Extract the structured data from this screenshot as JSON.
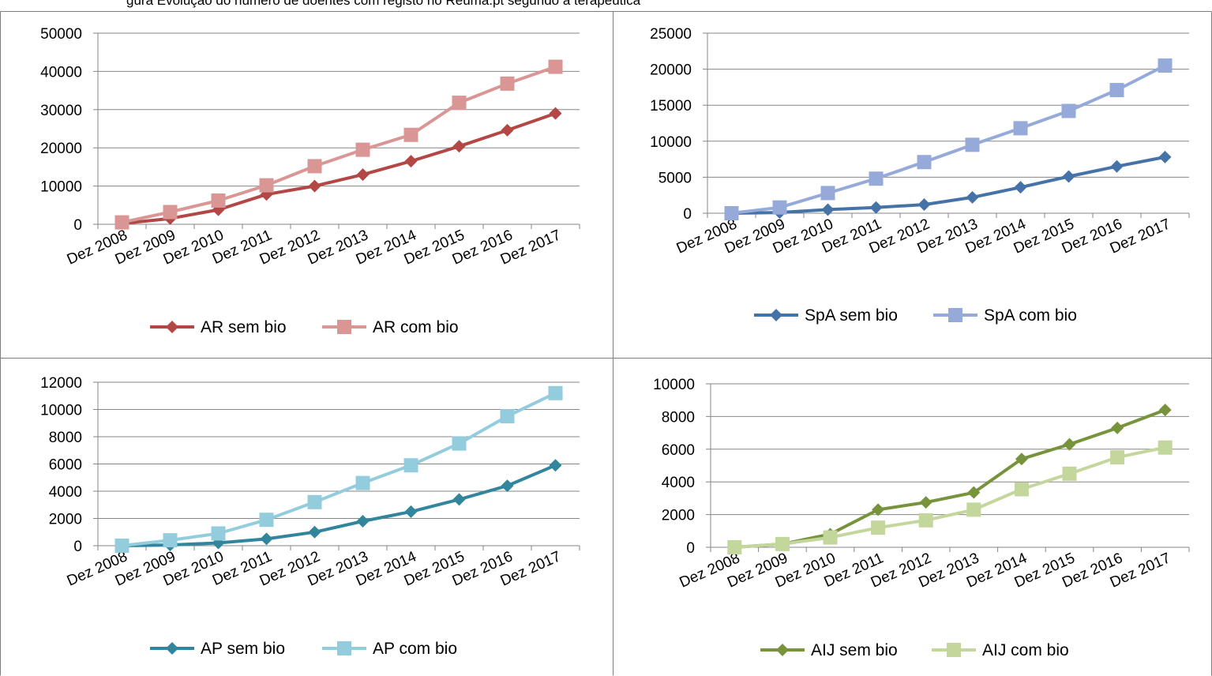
{
  "page": {
    "title_fragment": "gura   Evolução do número de doentes com registo no Reuma.pt segundo a terapêutica"
  },
  "chart_data": [
    {
      "type": "line",
      "categories": [
        "Dez 2008",
        "Dez 2009",
        "Dez 2010",
        "Dez 2011",
        "Dez 2012",
        "Dez 2013",
        "Dez 2014",
        "Dez 2015",
        "Dez 2016",
        "Dez 2017"
      ],
      "ylim": [
        0,
        50000
      ],
      "yticks": [
        0,
        10000,
        20000,
        30000,
        40000,
        50000
      ],
      "grid": true,
      "legend": "bottom",
      "series": [
        {
          "name": "AR sem bio",
          "marker": "diamond",
          "color": "#b24745",
          "values": [
            200,
            1500,
            3800,
            7800,
            10000,
            13000,
            16500,
            20400,
            24600,
            29000
          ]
        },
        {
          "name": "AR com bio",
          "marker": "square",
          "color": "#d99694",
          "values": [
            500,
            3200,
            6200,
            10200,
            15200,
            19500,
            23400,
            31800,
            36800,
            41200
          ]
        }
      ]
    },
    {
      "type": "line",
      "categories": [
        "Dez 2008",
        "Dez 2009",
        "Dez 2010",
        "Dez 2011",
        "Dez 2012",
        "Dez 2013",
        "Dez 2014",
        "Dez 2015",
        "Dez 2016",
        "Dez 2017"
      ],
      "ylim": [
        0,
        25000
      ],
      "yticks": [
        0,
        5000,
        10000,
        15000,
        20000,
        25000
      ],
      "grid": true,
      "legend": "bottom",
      "series": [
        {
          "name": "SpA sem bio",
          "marker": "diamond",
          "color": "#4572a7",
          "values": [
            0,
            100,
            500,
            800,
            1200,
            2200,
            3600,
            5100,
            6500,
            7800
          ]
        },
        {
          "name": "SpA com bio",
          "marker": "square",
          "color": "#95aad9",
          "values": [
            0,
            800,
            2800,
            4800,
            7100,
            9500,
            11800,
            14200,
            17100,
            20500
          ]
        }
      ]
    },
    {
      "type": "line",
      "categories": [
        "Dez 2008",
        "Dez 2009",
        "Dez 2010",
        "Dez 2011",
        "Dez 2012",
        "Dez 2013",
        "Dez 2014",
        "Dez 2015",
        "Dez 2016",
        "Dez 2017"
      ],
      "ylim": [
        0,
        12000
      ],
      "yticks": [
        0,
        2000,
        4000,
        6000,
        8000,
        10000,
        12000
      ],
      "grid": true,
      "legend": "bottom",
      "series": [
        {
          "name": "AP sem bio",
          "marker": "diamond",
          "color": "#31859c",
          "values": [
            0,
            50,
            200,
            500,
            1000,
            1800,
            2500,
            3400,
            4400,
            5900
          ]
        },
        {
          "name": "AP com bio",
          "marker": "square",
          "color": "#93cddd",
          "values": [
            0,
            400,
            900,
            1900,
            3200,
            4600,
            5900,
            7500,
            9500,
            11200
          ]
        }
      ]
    },
    {
      "type": "line",
      "categories": [
        "Dez 2008",
        "Dez 2009",
        "Dez 2010",
        "Dez 2011",
        "Dez 2012",
        "Dez 2013",
        "Dez 2014",
        "Dez 2015",
        "Dez 2016",
        "Dez 2017"
      ],
      "ylim": [
        0,
        10000
      ],
      "yticks": [
        0,
        2000,
        4000,
        6000,
        8000,
        10000
      ],
      "grid": true,
      "legend": "bottom",
      "series": [
        {
          "name": "AIJ sem bio",
          "marker": "diamond",
          "color": "#77933c",
          "values": [
            0,
            200,
            800,
            2300,
            2750,
            3350,
            5400,
            6300,
            7300,
            8400
          ]
        },
        {
          "name": "AIJ com bio",
          "marker": "square",
          "color": "#c3d69b",
          "values": [
            0,
            200,
            600,
            1200,
            1650,
            2300,
            3550,
            4500,
            5500,
            6100
          ]
        }
      ]
    }
  ]
}
